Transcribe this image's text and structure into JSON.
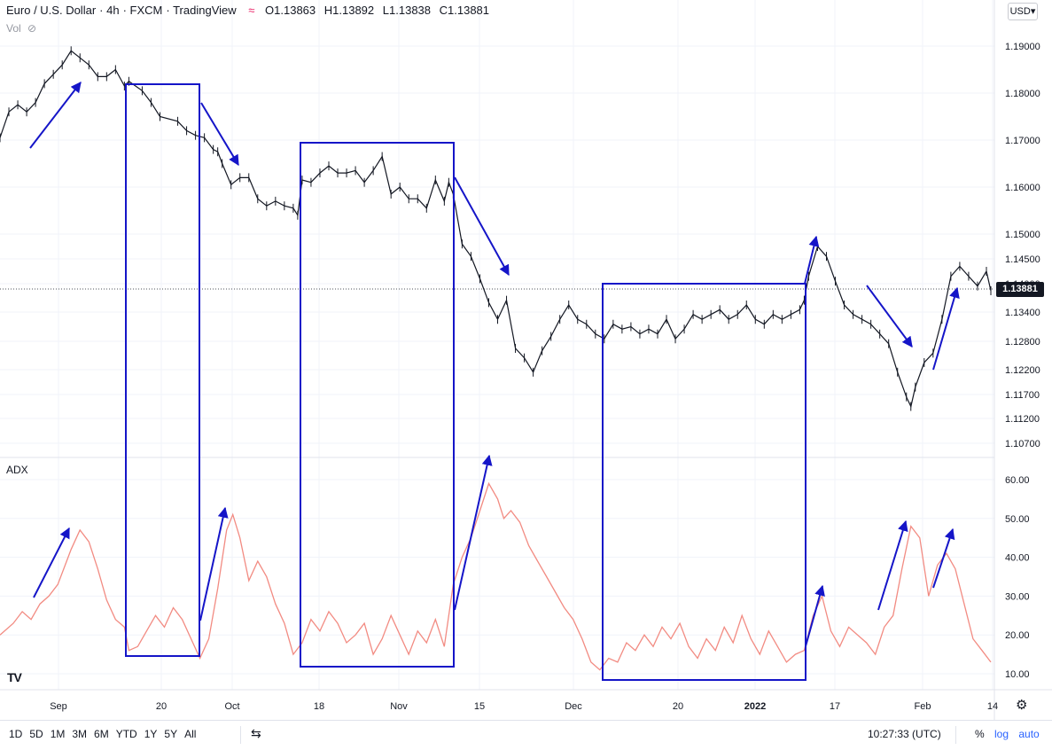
{
  "header": {
    "symbol": "Euro / U.S. Dollar",
    "interval": "4h",
    "exchange": "FXCM",
    "source": "TradingView",
    "ohlc": {
      "open": "O1.13863",
      "high": "H1.13892",
      "low": "L1.13838",
      "close": "C1.13881"
    }
  },
  "volume_label": "Vol",
  "adx_label": "ADX",
  "currency": "USD",
  "last_price": "1.13881",
  "colors": {
    "candle": "#131722",
    "adx_line": "#f28b82",
    "annotation": "#1515c8",
    "grid": "#f0f3fa"
  },
  "bottom_bar": {
    "ranges": [
      "1D",
      "5D",
      "1M",
      "3M",
      "6M",
      "YTD",
      "1Y",
      "5Y",
      "All"
    ],
    "time": "10:27:33 (UTC)",
    "percent": "%",
    "log": "log",
    "auto": "auto"
  },
  "chart_data": [
    {
      "type": "line",
      "name": "price",
      "y_ticks": [
        "1.19000",
        "1.18000",
        "1.17000",
        "1.16000",
        "1.15000",
        "1.14500",
        "1.14000",
        "1.13400",
        "1.12800",
        "1.12200",
        "1.11700",
        "1.11200",
        "1.10700"
      ],
      "x_ticks": [
        "Sep",
        "20",
        "Oct",
        "18",
        "Nov",
        "15",
        "Dec",
        "20",
        "2022",
        "17",
        "Feb",
        "14"
      ],
      "x": [
        0,
        10,
        20,
        30,
        40,
        50,
        60,
        70,
        80,
        90,
        100,
        110,
        120,
        130,
        140,
        145,
        160,
        170,
        180,
        200,
        210,
        220,
        230,
        240,
        245,
        250,
        260,
        270,
        280,
        290,
        300,
        310,
        320,
        330,
        335,
        340,
        350,
        360,
        370,
        380,
        390,
        400,
        410,
        420,
        430,
        440,
        450,
        460,
        470,
        480,
        490,
        500,
        505,
        510,
        520,
        530,
        540,
        550,
        560,
        570,
        580,
        590,
        600,
        610,
        620,
        630,
        640,
        650,
        660,
        670,
        680,
        690,
        700,
        710,
        720,
        730,
        740,
        750,
        760,
        770,
        780,
        790,
        800,
        810,
        820,
        830,
        840,
        850,
        860,
        870,
        880,
        890,
        900,
        905,
        910,
        920,
        930,
        940,
        950,
        960,
        970,
        980,
        990,
        1000,
        1010,
        1020,
        1025,
        1030,
        1040,
        1050,
        1060,
        1070,
        1080,
        1090,
        1100,
        1110,
        1115
      ],
      "y": [
        1.1705,
        1.176,
        1.1775,
        1.176,
        1.178,
        1.182,
        1.184,
        1.186,
        1.189,
        1.1875,
        1.186,
        1.1835,
        1.1835,
        1.185,
        1.1815,
        1.1825,
        1.1805,
        1.178,
        1.175,
        1.174,
        1.172,
        1.171,
        1.1705,
        1.168,
        1.1675,
        1.165,
        1.1605,
        1.162,
        1.162,
        1.1575,
        1.156,
        1.157,
        1.156,
        1.1555,
        1.154,
        1.1615,
        1.161,
        1.163,
        1.1645,
        1.163,
        1.163,
        1.1635,
        1.161,
        1.1635,
        1.1665,
        1.1585,
        1.16,
        1.1575,
        1.1575,
        1.1555,
        1.1615,
        1.157,
        1.161,
        1.1585,
        1.148,
        1.1455,
        1.141,
        1.136,
        1.1325,
        1.1365,
        1.1265,
        1.1245,
        1.1215,
        1.126,
        1.129,
        1.1325,
        1.1355,
        1.1325,
        1.1315,
        1.1295,
        1.1285,
        1.1315,
        1.1305,
        1.131,
        1.1295,
        1.1305,
        1.1295,
        1.1325,
        1.1285,
        1.1305,
        1.1335,
        1.1325,
        1.1335,
        1.1345,
        1.1325,
        1.1335,
        1.1355,
        1.1325,
        1.1315,
        1.1335,
        1.1325,
        1.1335,
        1.1345,
        1.1365,
        1.1415,
        1.1475,
        1.1455,
        1.1405,
        1.1355,
        1.1335,
        1.1325,
        1.1315,
        1.1295,
        1.1275,
        1.1215,
        1.1165,
        1.1145,
        1.1185,
        1.1235,
        1.1255,
        1.1325,
        1.1415,
        1.1435,
        1.1415,
        1.1395,
        1.1425,
        1.1385
      ]
    },
    {
      "type": "line",
      "name": "ADX",
      "y_ticks": [
        "60.00",
        "50.00",
        "40.00",
        "30.00",
        "20.00",
        "10.00"
      ],
      "ylim": [
        10,
        60
      ],
      "x": [
        0,
        15,
        25,
        35,
        45,
        55,
        65,
        75,
        80,
        90,
        100,
        110,
        120,
        130,
        140,
        145,
        155,
        165,
        175,
        185,
        195,
        205,
        215,
        225,
        235,
        245,
        255,
        262,
        270,
        280,
        290,
        300,
        310,
        320,
        330,
        340,
        350,
        360,
        370,
        380,
        390,
        400,
        410,
        420,
        430,
        440,
        450,
        460,
        470,
        480,
        490,
        500,
        510,
        520,
        530,
        540,
        550,
        560,
        567,
        575,
        585,
        595,
        605,
        615,
        625,
        635,
        645,
        655,
        665,
        675,
        685,
        695,
        705,
        715,
        725,
        735,
        745,
        755,
        765,
        775,
        785,
        795,
        805,
        815,
        825,
        835,
        845,
        855,
        865,
        875,
        885,
        895,
        905,
        915,
        925,
        935,
        945,
        955,
        965,
        975,
        985,
        995,
        1005,
        1015,
        1025,
        1035,
        1045,
        1055,
        1065,
        1075,
        1085,
        1095,
        1105,
        1115
      ],
      "y": [
        20,
        23,
        26,
        24,
        28,
        30,
        33,
        39,
        42,
        47,
        44,
        37,
        29,
        24,
        22,
        16,
        17,
        21,
        25,
        22,
        27,
        24,
        19,
        14,
        19,
        32,
        47,
        51,
        45,
        34,
        39,
        35,
        28,
        23,
        15,
        18,
        24,
        21,
        26,
        23,
        18,
        20,
        23,
        15,
        19,
        25,
        20,
        15,
        21,
        18,
        24,
        17,
        33,
        40,
        45,
        52,
        59,
        55,
        50,
        52,
        49,
        43,
        39,
        35,
        31,
        27,
        24,
        19,
        13,
        11,
        14,
        13,
        18,
        16,
        20,
        17,
        22,
        19,
        23,
        17,
        14,
        19,
        16,
        22,
        18,
        25,
        19,
        15,
        21,
        17,
        13,
        15,
        16,
        25,
        30,
        21,
        17,
        22,
        20,
        18,
        15,
        22,
        25,
        37,
        48,
        45,
        30,
        38,
        41,
        37,
        28,
        19,
        16,
        13
      ]
    }
  ]
}
